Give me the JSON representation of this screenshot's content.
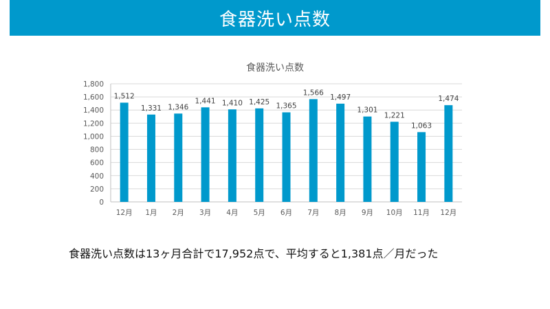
{
  "header": {
    "title": "食器洗い点数"
  },
  "chart_data": {
    "type": "bar",
    "title": "食器洗い点数",
    "xlabel": "",
    "ylabel": "",
    "categories": [
      "12月",
      "1月",
      "2月",
      "3月",
      "4月",
      "5月",
      "6月",
      "7月",
      "8月",
      "9月",
      "10月",
      "11月",
      "12月"
    ],
    "values": [
      1512,
      1331,
      1346,
      1441,
      1410,
      1425,
      1365,
      1566,
      1497,
      1301,
      1221,
      1063,
      1474
    ],
    "value_labels": [
      "1,512",
      "1,331",
      "1,346",
      "1,441",
      "1,410",
      "1,425",
      "1,365",
      "1,566",
      "1,497",
      "1,301",
      "1,221",
      "1,063",
      "1,474"
    ],
    "yticks": [
      "0",
      "200",
      "400",
      "600",
      "800",
      "1,000",
      "1,200",
      "1,400",
      "1,600",
      "1,800"
    ],
    "ylim": [
      0,
      1800
    ],
    "grid": true,
    "legend": "none",
    "bar_color": "#0099cc"
  },
  "summary": {
    "text": "食器洗い点数は13ヶ月合計で17,952点で、平均すると1,381点／月だった"
  }
}
